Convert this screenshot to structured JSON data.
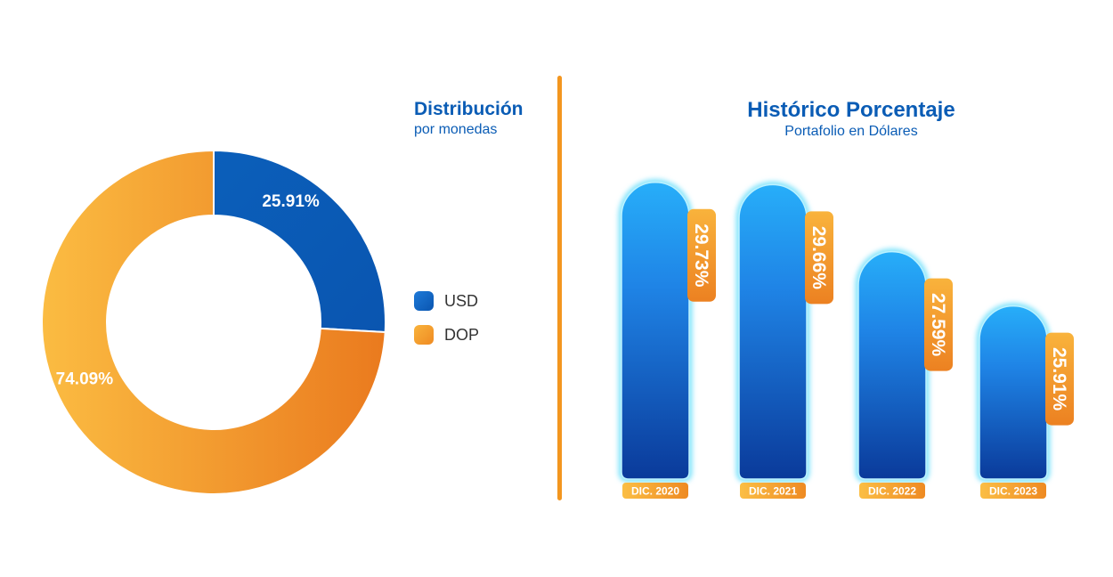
{
  "colors": {
    "blue": "#0a5cb5",
    "orange": "#f3961f",
    "bar_top": "#27aef9",
    "bar_bottom": "#0a3a9a"
  },
  "donut": {
    "title": "Distribución",
    "subtitle": "por monedas",
    "legend": [
      {
        "label": "USD",
        "color": "#0a5cb5"
      },
      {
        "label": "DOP",
        "color": "#f3961f"
      }
    ]
  },
  "bars": {
    "title": "Histórico Porcentaje",
    "subtitle": "Portafolio en Dólares"
  },
  "chart_data": [
    {
      "type": "pie",
      "categories": [
        "USD",
        "DOP"
      ],
      "values": [
        25.91,
        74.09
      ],
      "labels": [
        "25.91%",
        "74.09%"
      ],
      "title": "Distribución",
      "subtitle": "por monedas"
    },
    {
      "type": "bar",
      "categories": [
        "DIC. 2020",
        "DIC. 2021",
        "DIC. 2022",
        "DIC. 2023"
      ],
      "values": [
        29.73,
        29.66,
        27.59,
        25.91
      ],
      "labels": [
        "29.73%",
        "29.66%",
        "27.59%",
        "25.91%"
      ],
      "title": "Histórico Porcentaje",
      "subtitle": "Portafolio en Dólares",
      "ylim": [
        24,
        30
      ]
    }
  ]
}
